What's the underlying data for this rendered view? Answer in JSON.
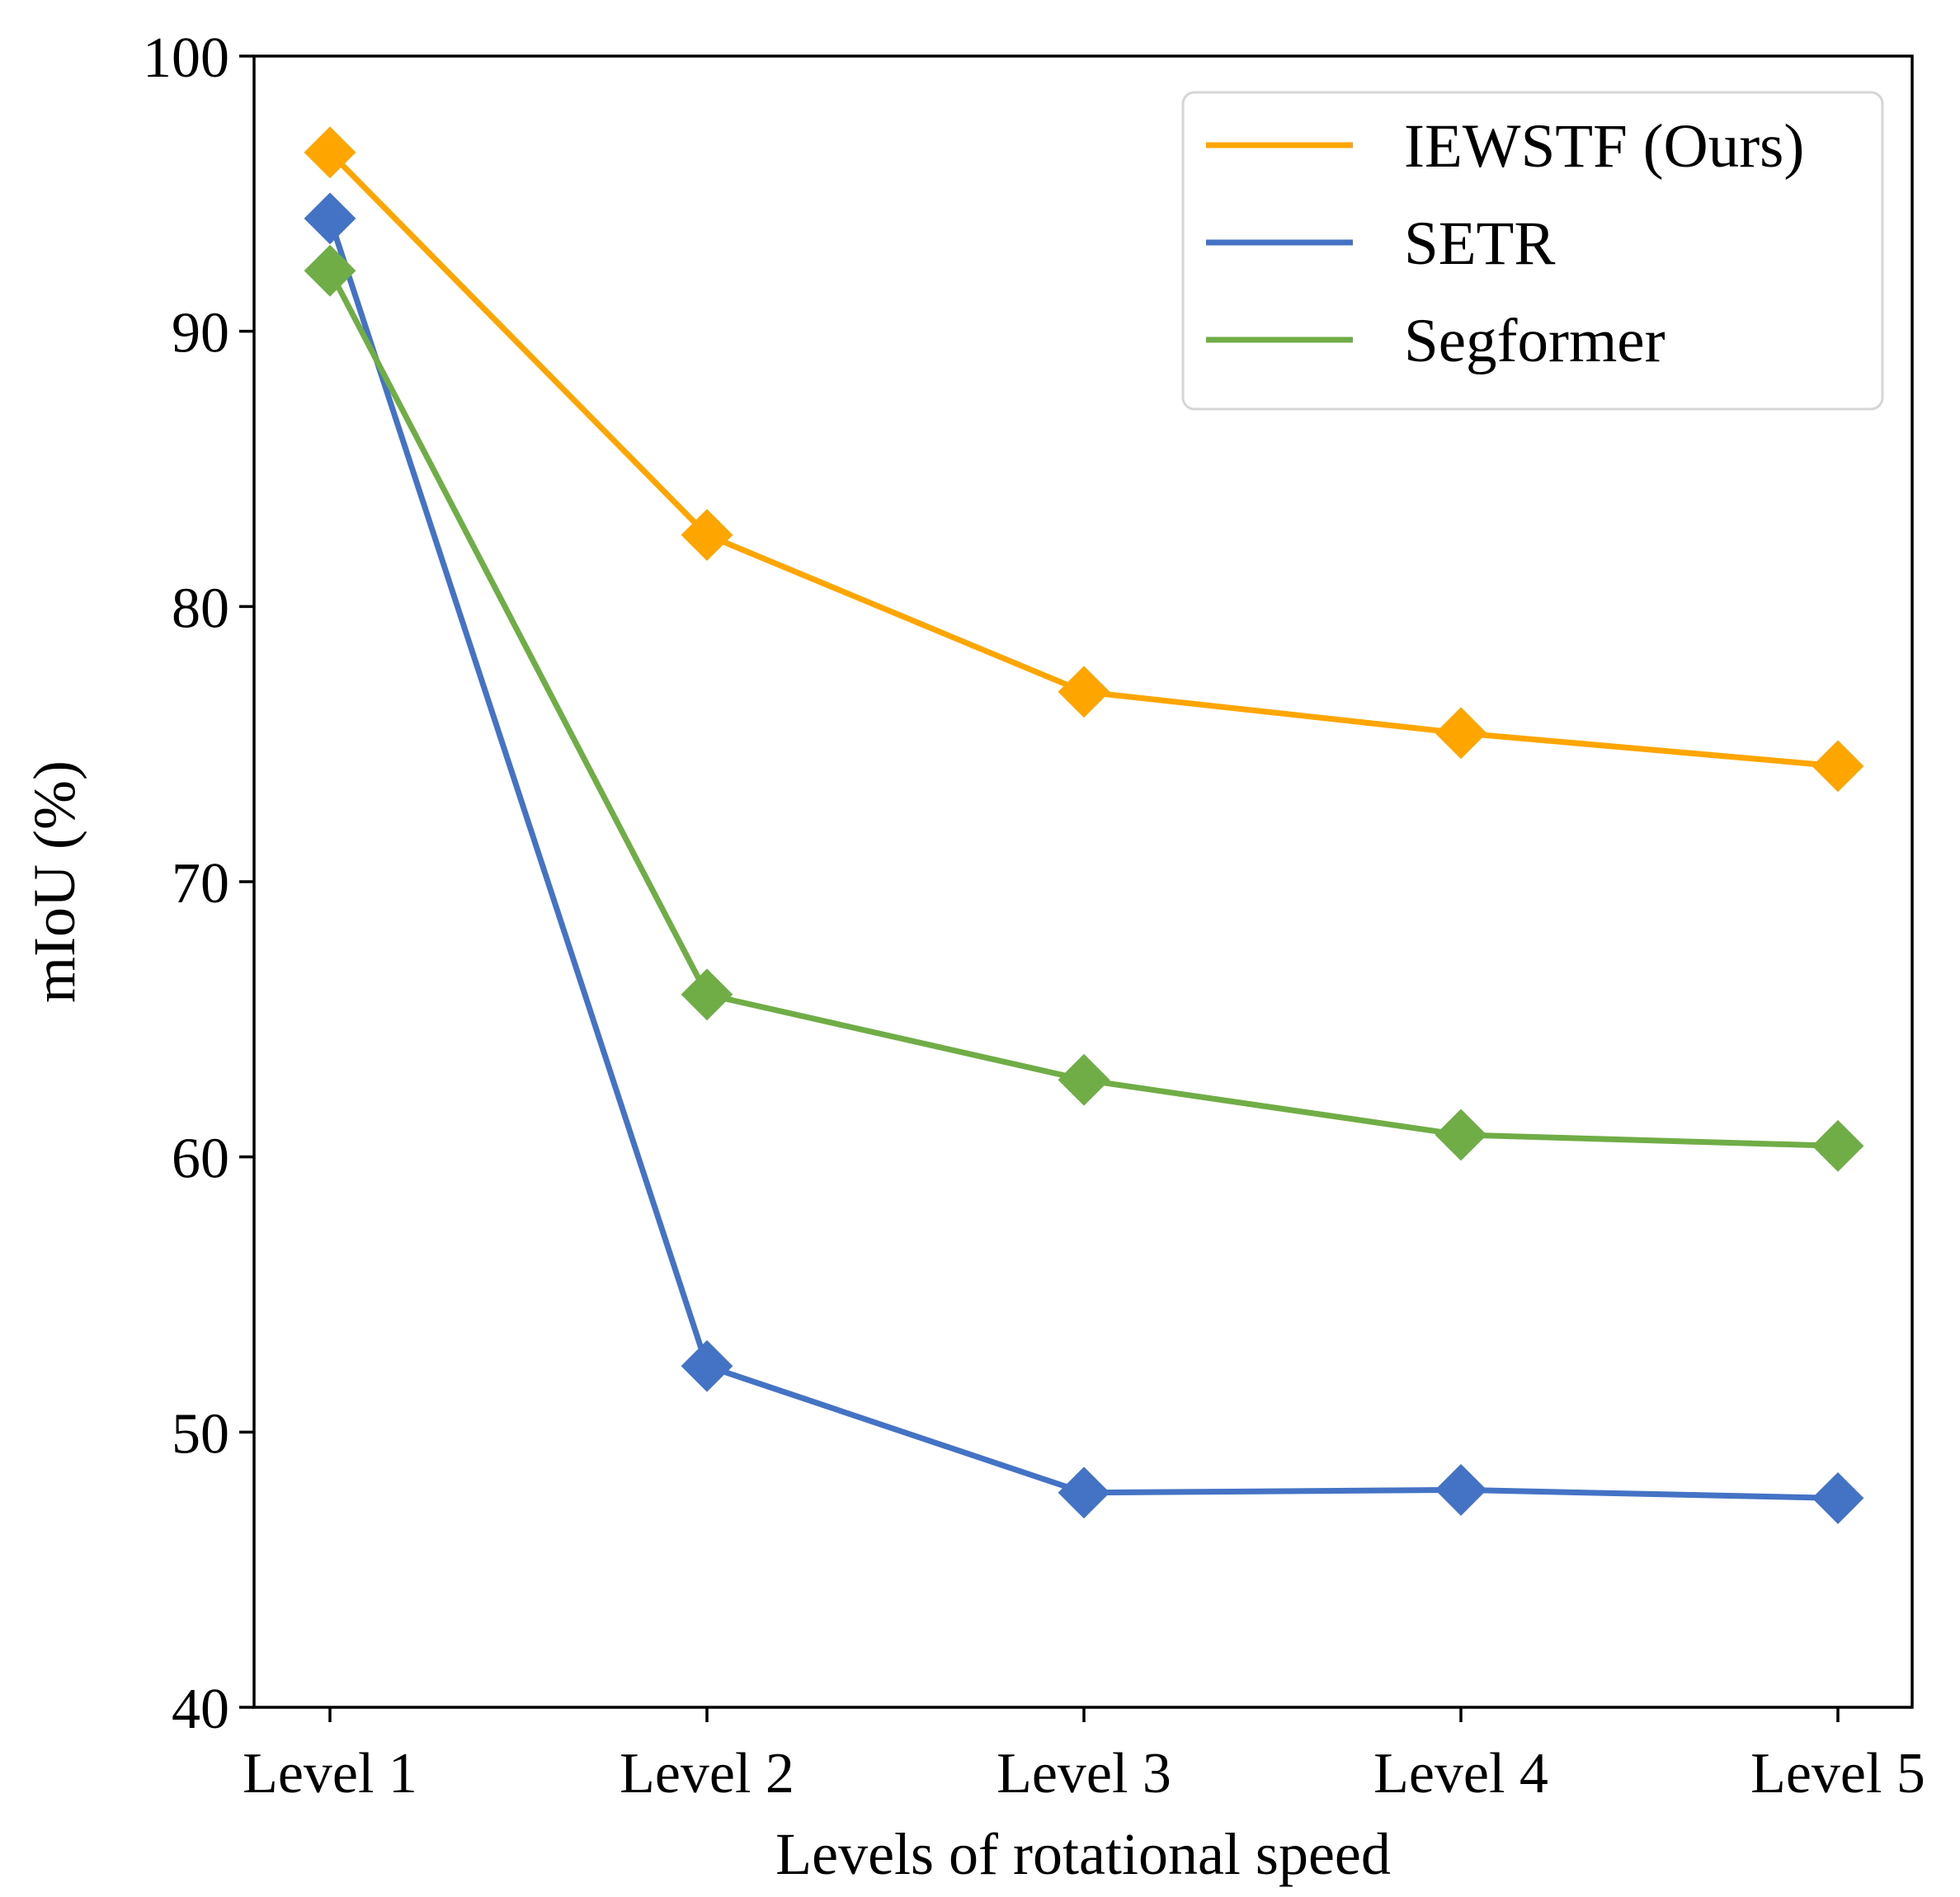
{
  "chart_data": {
    "type": "line",
    "title": "",
    "xlabel": "Levels of rotational speed",
    "ylabel": "mIoU (%)",
    "categories": [
      "Level 1",
      "Level 2",
      "Level 3",
      "Level 4",
      "Level 5"
    ],
    "ylim": [
      40,
      100
    ],
    "yticks": [
      40,
      50,
      60,
      70,
      80,
      90,
      100
    ],
    "grid": false,
    "legend_position": "top-right",
    "marker": "diamond",
    "series": [
      {
        "name": "IEWSTF (Ours)",
        "color": "#FFA500",
        "values": [
          96.5,
          82.6,
          76.9,
          75.4,
          74.2
        ]
      },
      {
        "name": "SETR",
        "color": "#4472C4",
        "values": [
          94.1,
          52.4,
          47.8,
          47.9,
          47.6
        ]
      },
      {
        "name": "Segformer",
        "color": "#70AD47",
        "values": [
          92.2,
          65.9,
          62.8,
          60.8,
          60.4
        ]
      }
    ]
  }
}
